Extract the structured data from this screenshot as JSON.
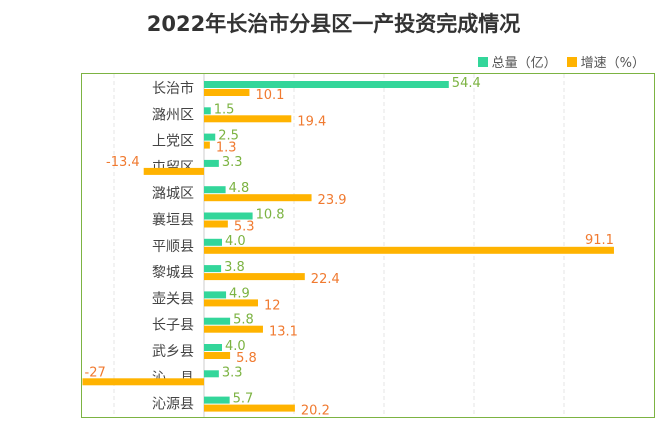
{
  "chart_data": {
    "type": "bar",
    "orientation": "horizontal",
    "title": "2022年长治市分县区一产投资完成情况",
    "categories": [
      "长治市",
      "潞州区",
      "上党区",
      "屯留区",
      "潞城区",
      "襄垣县",
      "平顺县",
      "黎城县",
      "壶关县",
      "长子县",
      "武乡县",
      "沁　县",
      "沁源县"
    ],
    "series": [
      {
        "name": "总量（亿）",
        "color": "#33d69a",
        "label_color": "#7cb342",
        "values": [
          54.4,
          1.5,
          2.5,
          3.3,
          4.8,
          10.8,
          4.0,
          3.8,
          4.9,
          5.8,
          4.0,
          3.3,
          5.7
        ],
        "labels": [
          "54.4",
          "1.5",
          "2.5",
          "3.3",
          "4.8",
          "10.8",
          "4.0",
          "3.8",
          "4.9",
          "5.8",
          "4.0",
          "3.3",
          "5.7"
        ]
      },
      {
        "name": "增速（%）",
        "color": "#ffb300",
        "label_color": "#f07a30",
        "values": [
          10.1,
          19.4,
          1.3,
          -13.4,
          23.9,
          5.3,
          91.1,
          22.4,
          12,
          13.1,
          5.8,
          -27,
          20.2
        ],
        "labels": [
          "10.1",
          "19.4",
          "1.3",
          "-13.4",
          "23.9",
          "5.3",
          "91.1",
          "22.4",
          "12",
          "13.1",
          "5.8",
          "-27",
          "20.2"
        ]
      }
    ],
    "xlim": [
      -27,
      100
    ],
    "grid": true,
    "legend": "top-right"
  }
}
